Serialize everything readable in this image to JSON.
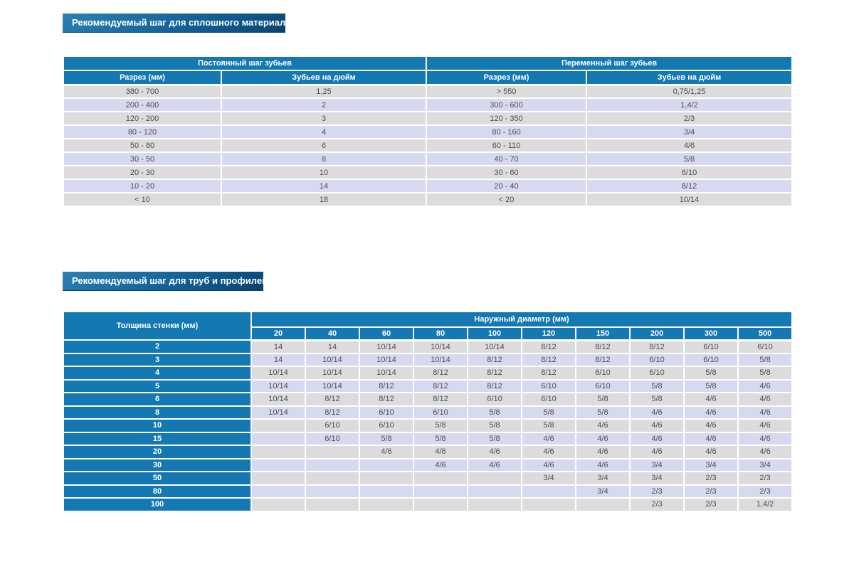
{
  "colors": {
    "header_blue": "#1478b3",
    "row_gray": "#dcdcdc",
    "row_lavender": "#d7d9f0",
    "badge_blue_top": "#2c80b2",
    "badge_blue_bottom": "#0d3f68",
    "cell_text": "#4d4d4d"
  },
  "section1": {
    "title": "Рекомендуемый шаг для сплошного материала",
    "table": {
      "groups": [
        "Постоянный шаг зубьев",
        "Переменный шаг зубьев"
      ],
      "columns": [
        "Разрез (мм)",
        "Зубьев на дюйм",
        "Разрез (мм)",
        "Зубьев на дюйм"
      ],
      "rows": [
        [
          "380 - 700",
          "1,25",
          "> 550",
          "0,75/1,25"
        ],
        [
          "200 - 400",
          "2",
          "300 - 600",
          "1,4/2"
        ],
        [
          "120 - 200",
          "3",
          "120 - 350",
          "2/3"
        ],
        [
          "80 - 120",
          "4",
          "80 - 160",
          "3/4"
        ],
        [
          "50 - 80",
          "6",
          "60 - 110",
          "4/6"
        ],
        [
          "30 - 50",
          "8",
          "40 - 70",
          "5/8"
        ],
        [
          "20 - 30",
          "10",
          "30 - 60",
          "6/10"
        ],
        [
          "10 - 20",
          "14",
          "20 - 40",
          "8/12"
        ],
        [
          "< 10",
          "18",
          "< 20",
          "10/14"
        ]
      ]
    }
  },
  "section2": {
    "title": "Рекомендуемый шаг для труб и профилей",
    "table": {
      "corner_header": "Толщина стенки (мм)",
      "span_header": "Наружный диаметр (мм)",
      "diameters": [
        "20",
        "40",
        "60",
        "80",
        "100",
        "120",
        "150",
        "200",
        "300",
        "500"
      ],
      "rows": [
        {
          "thickness": "2",
          "values": [
            "14",
            "14",
            "10/14",
            "10/14",
            "10/14",
            "8/12",
            "8/12",
            "8/12",
            "6/10",
            "6/10"
          ]
        },
        {
          "thickness": "3",
          "values": [
            "14",
            "10/14",
            "10/14",
            "10/14",
            "8/12",
            "8/12",
            "8/12",
            "6/10",
            "6/10",
            "5/8"
          ]
        },
        {
          "thickness": "4",
          "values": [
            "10/14",
            "10/14",
            "10/14",
            "8/12",
            "8/12",
            "8/12",
            "6/10",
            "6/10",
            "5/8",
            "5/8"
          ]
        },
        {
          "thickness": "5",
          "values": [
            "10/14",
            "10/14",
            "8/12",
            "8/12",
            "8/12",
            "6/10",
            "6/10",
            "5/8",
            "5/8",
            "4/6"
          ]
        },
        {
          "thickness": "6",
          "values": [
            "10/14",
            "8/12",
            "8/12",
            "8/12",
            "6/10",
            "6/10",
            "5/8",
            "5/8",
            "4/6",
            "4/6"
          ]
        },
        {
          "thickness": "8",
          "values": [
            "10/14",
            "8/12",
            "6/10",
            "6/10",
            "5/8",
            "5/8",
            "5/8",
            "4/6",
            "4/6",
            "4/6"
          ]
        },
        {
          "thickness": "10",
          "values": [
            "",
            "6/10",
            "6/10",
            "5/8",
            "5/8",
            "5/8",
            "4/6",
            "4/6",
            "4/6",
            "4/6"
          ]
        },
        {
          "thickness": "15",
          "values": [
            "",
            "6/10",
            "5/8",
            "5/8",
            "5/8",
            "4/6",
            "4/6",
            "4/6",
            "4/6",
            "4/6"
          ]
        },
        {
          "thickness": "20",
          "values": [
            "",
            "",
            "4/6",
            "4/6",
            "4/6",
            "4/6",
            "4/6",
            "4/6",
            "4/6",
            "4/6"
          ]
        },
        {
          "thickness": "30",
          "values": [
            "",
            "",
            "",
            "4/6",
            "4/6",
            "4/6",
            "4/6",
            "3/4",
            "3/4",
            "3/4"
          ]
        },
        {
          "thickness": "50",
          "values": [
            "",
            "",
            "",
            "",
            "",
            "3/4",
            "3/4",
            "3/4",
            "2/3",
            "2/3"
          ]
        },
        {
          "thickness": "80",
          "values": [
            "",
            "",
            "",
            "",
            "",
            "",
            "3/4",
            "2/3",
            "2/3",
            "2/3"
          ]
        },
        {
          "thickness": "100",
          "values": [
            "",
            "",
            "",
            "",
            "",
            "",
            "",
            "2/3",
            "2/3",
            "1,4/2"
          ]
        }
      ]
    }
  }
}
